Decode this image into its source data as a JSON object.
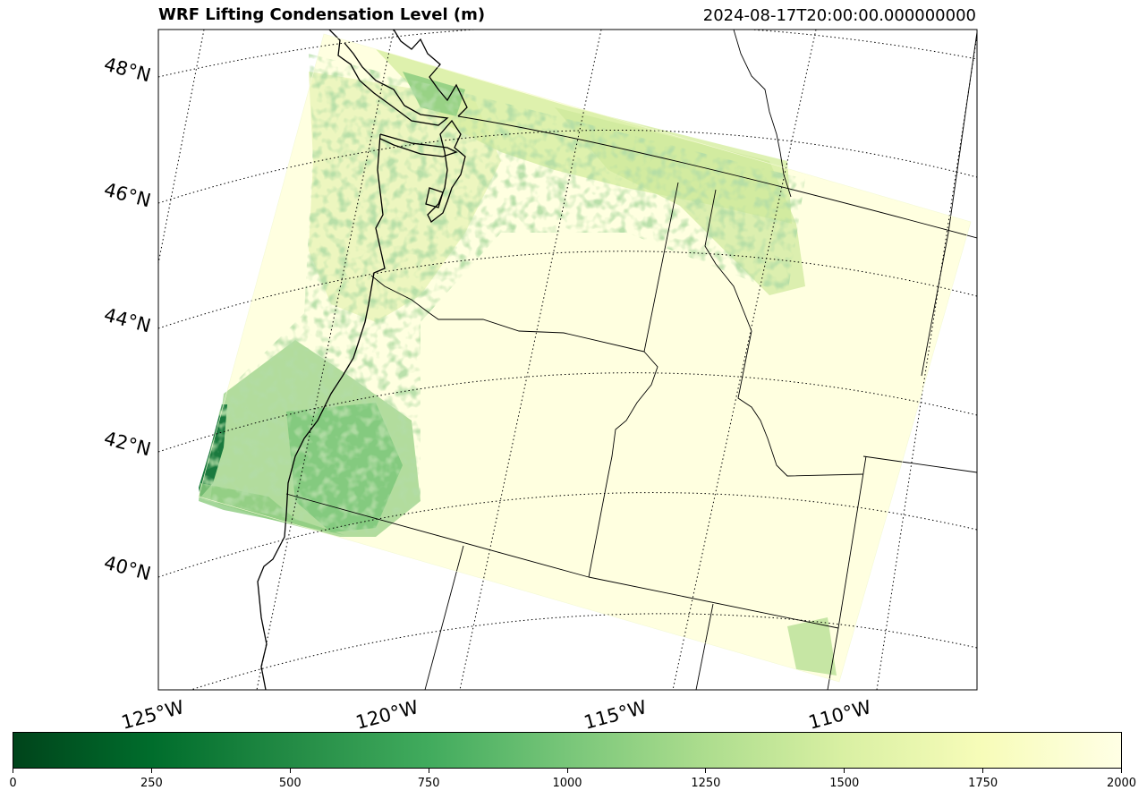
{
  "figure": {
    "title": "WRF Lifting Condensation Level (m)",
    "timestamp": "2024-08-17T20:00:00.000000000"
  },
  "map": {
    "projection": "lambert-conformal",
    "field": "Lifting Condensation Level",
    "units": "m",
    "graticule_style": "dotted",
    "latitude_labels": [
      "48°N",
      "46°N",
      "44°N",
      "42°N",
      "40°N"
    ],
    "longitude_labels": [
      "125°W",
      "120°W",
      "115°W",
      "110°W"
    ],
    "features": [
      "coastline",
      "state-borders",
      "lat-lon-gridlines"
    ],
    "colors": {
      "low": "#00441b",
      "mid_low": "#238b45",
      "mid": "#74c476",
      "mid_high": "#c2e699",
      "high": "#f7fcb9",
      "max": "#ffffe5",
      "background_field": "#ffffe0"
    }
  },
  "colorbar": {
    "colormap": "YlGn_r",
    "min": 0,
    "max": 2000,
    "tick_labels": [
      "0",
      "250",
      "500",
      "750",
      "1000",
      "1250",
      "1500",
      "1750",
      "2000"
    ],
    "tick_values": [
      0,
      250,
      500,
      750,
      1000,
      1250,
      1500,
      1750,
      2000
    ]
  }
}
